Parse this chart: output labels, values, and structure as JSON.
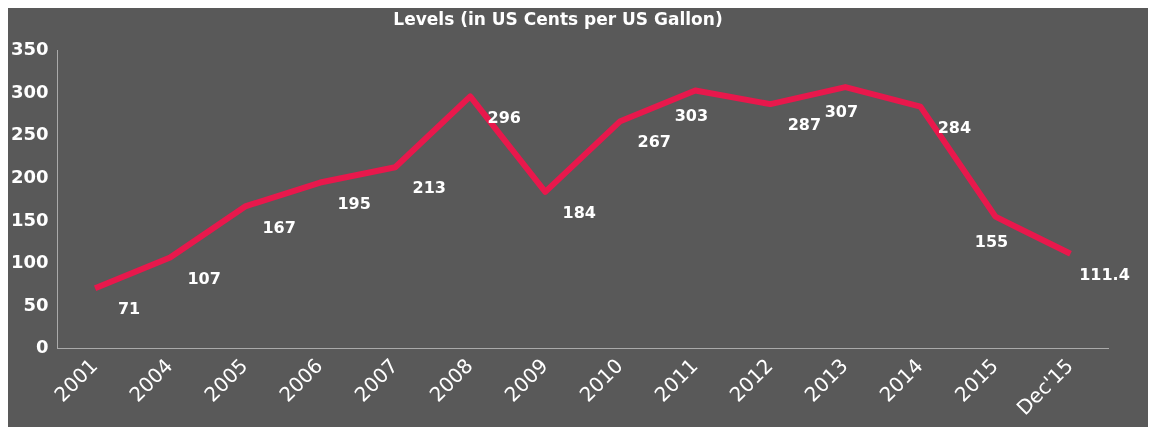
{
  "chart_data": {
    "type": "line",
    "title": "Levels (in US Cents per US Gallon)",
    "categories": [
      "2001",
      "2004",
      "2005",
      "2006",
      "2007",
      "2008",
      "2009",
      "2010",
      "2011",
      "2012",
      "2013",
      "2014",
      "2015",
      "Dec'15"
    ],
    "series": [
      {
        "color": "#e8184c",
        "values": [
          71,
          107,
          167,
          195,
          213,
          296,
          184,
          267,
          303,
          287,
          307,
          284,
          155,
          111.4
        ]
      }
    ],
    "ylim": [
      0,
      350
    ],
    "yticks": [
      0,
      50,
      100,
      150,
      200,
      250,
      300,
      350
    ],
    "grid": false,
    "legend": false,
    "marker": "none",
    "line_style": "solid",
    "data_labels": true
  }
}
